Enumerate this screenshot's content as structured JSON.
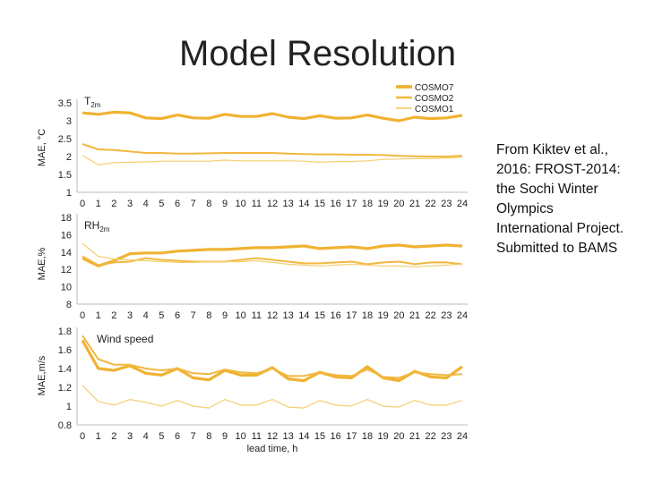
{
  "slide": {
    "title": "Model Resolution",
    "caption": "From Kiktev et al., 2016: FROST-2014: the Sochi Winter Olympics International Project. Submitted to BAMS"
  },
  "colors": {
    "series": [
      "#E8A21A",
      "#F0B43A",
      "#F3C65A"
    ],
    "line": [
      "#F0B232",
      "#F1B840",
      "#F5CE70"
    ]
  },
  "chart_data": [
    {
      "type": "line",
      "title": "T2m",
      "title_main": "T",
      "title_sub": "2m",
      "xlabel": "",
      "ylabel": "MAE, °C",
      "x": [
        0,
        1,
        2,
        3,
        4,
        5,
        6,
        7,
        8,
        9,
        10,
        11,
        12,
        13,
        14,
        15,
        16,
        17,
        18,
        19,
        20,
        21,
        22,
        23,
        24
      ],
      "ylim": [
        1,
        3.5
      ],
      "yticks": [
        "1",
        "1.5",
        "2",
        "2.5",
        "3",
        "3.5"
      ],
      "legend_position": "top-right",
      "series": [
        {
          "name": "COSMO7",
          "values": [
            3.22,
            3.18,
            3.24,
            3.22,
            3.08,
            3.06,
            3.16,
            3.08,
            3.07,
            3.18,
            3.12,
            3.12,
            3.2,
            3.1,
            3.06,
            3.14,
            3.07,
            3.08,
            3.16,
            3.07,
            3.0,
            3.1,
            3.06,
            3.08,
            3.15
          ]
        },
        {
          "name": "COSMO2",
          "values": [
            2.35,
            2.2,
            2.18,
            2.14,
            2.1,
            2.1,
            2.08,
            2.08,
            2.09,
            2.1,
            2.1,
            2.1,
            2.1,
            2.08,
            2.07,
            2.06,
            2.06,
            2.05,
            2.05,
            2.04,
            2.02,
            2.01,
            2.0,
            2.0,
            2.02
          ]
        },
        {
          "name": "COSMO1",
          "values": [
            2.03,
            1.77,
            1.83,
            1.84,
            1.85,
            1.87,
            1.87,
            1.87,
            1.87,
            1.9,
            1.88,
            1.88,
            1.88,
            1.88,
            1.87,
            1.84,
            1.86,
            1.86,
            1.88,
            1.92,
            1.93,
            1.94,
            1.94,
            1.96,
            1.98
          ]
        }
      ]
    },
    {
      "type": "line",
      "title": "RH2m",
      "title_main": "RH",
      "title_sub": "2m",
      "xlabel": "",
      "ylabel": "MAE,%",
      "x": [
        0,
        1,
        2,
        3,
        4,
        5,
        6,
        7,
        8,
        9,
        10,
        11,
        12,
        13,
        14,
        15,
        16,
        17,
        18,
        19,
        20,
        21,
        22,
        23,
        24
      ],
      "ylim": [
        8,
        18
      ],
      "yticks": [
        "8",
        "10",
        "12",
        "14",
        "16",
        "18"
      ],
      "series": [
        {
          "name": "COSMO7",
          "values": [
            13.3,
            12.4,
            13.0,
            13.8,
            13.9,
            13.9,
            14.1,
            14.2,
            14.3,
            14.3,
            14.4,
            14.5,
            14.5,
            14.6,
            14.7,
            14.4,
            14.5,
            14.6,
            14.4,
            14.7,
            14.8,
            14.6,
            14.7,
            14.8,
            14.7
          ]
        },
        {
          "name": "COSMO2",
          "values": [
            13.5,
            12.5,
            12.8,
            12.9,
            13.3,
            13.1,
            13.0,
            12.9,
            12.9,
            12.9,
            13.1,
            13.3,
            13.1,
            12.9,
            12.7,
            12.7,
            12.8,
            12.9,
            12.6,
            12.8,
            12.9,
            12.6,
            12.8,
            12.8,
            12.6
          ]
        },
        {
          "name": "COSMO1",
          "values": [
            15.0,
            13.5,
            13.2,
            13.1,
            13.0,
            12.9,
            12.8,
            12.8,
            12.9,
            12.9,
            12.9,
            13.0,
            12.8,
            12.6,
            12.5,
            12.4,
            12.5,
            12.6,
            12.5,
            12.4,
            12.4,
            12.3,
            12.4,
            12.5,
            12.6
          ]
        }
      ]
    },
    {
      "type": "line",
      "title": "Wind speed",
      "xlabel": "lead time, h",
      "ylabel": "MAE,m/s",
      "x": [
        0,
        1,
        2,
        3,
        4,
        5,
        6,
        7,
        8,
        9,
        10,
        11,
        12,
        13,
        14,
        15,
        16,
        17,
        18,
        19,
        20,
        21,
        22,
        23,
        24
      ],
      "ylim": [
        0.8,
        1.8
      ],
      "yticks": [
        "0.8",
        "1",
        "1.2",
        "1.4",
        "1.6",
        "1.8"
      ],
      "series": [
        {
          "name": "COSMO7",
          "values": [
            1.7,
            1.4,
            1.38,
            1.43,
            1.35,
            1.33,
            1.4,
            1.3,
            1.28,
            1.38,
            1.33,
            1.33,
            1.41,
            1.29,
            1.27,
            1.36,
            1.31,
            1.3,
            1.42,
            1.3,
            1.27,
            1.37,
            1.31,
            1.3,
            1.42
          ]
        },
        {
          "name": "COSMO2",
          "values": [
            1.75,
            1.5,
            1.44,
            1.44,
            1.4,
            1.38,
            1.4,
            1.35,
            1.34,
            1.39,
            1.36,
            1.35,
            1.4,
            1.32,
            1.32,
            1.36,
            1.33,
            1.32,
            1.39,
            1.31,
            1.3,
            1.36,
            1.34,
            1.33,
            1.34
          ]
        },
        {
          "name": "COSMO1",
          "values": [
            1.22,
            1.05,
            1.01,
            1.07,
            1.04,
            1.0,
            1.06,
            1.0,
            0.98,
            1.07,
            1.01,
            1.01,
            1.07,
            0.99,
            0.98,
            1.06,
            1.01,
            1.0,
            1.07,
            1.0,
            0.99,
            1.06,
            1.01,
            1.01,
            1.06
          ]
        }
      ]
    }
  ]
}
